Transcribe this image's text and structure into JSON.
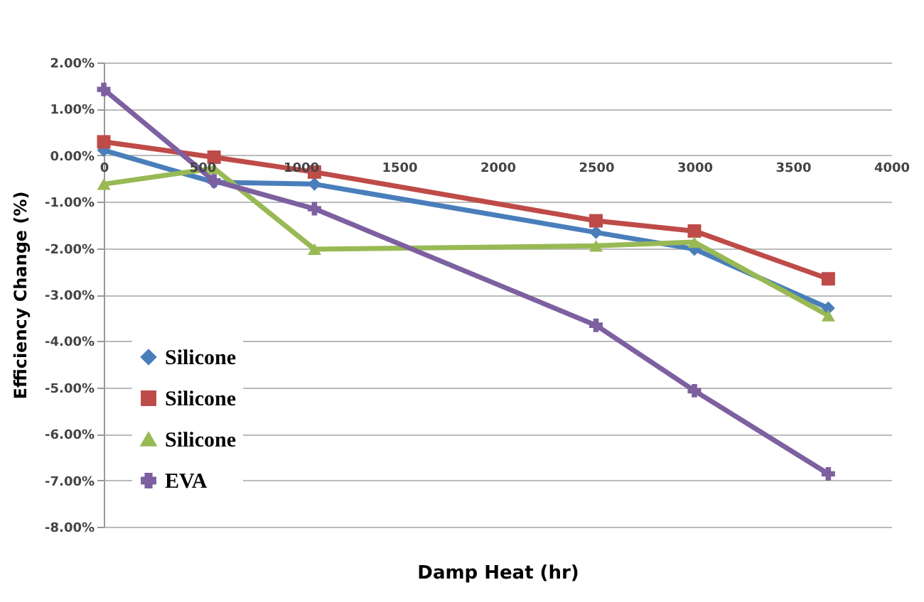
{
  "chart_data": {
    "type": "line",
    "xlabel": "Damp Heat (hr)",
    "ylabel": "Efficiency Change (%)",
    "x": [
      0,
      560,
      1070,
      2500,
      3000,
      3680
    ],
    "series": [
      {
        "name": "Silicone",
        "color": "#4a7ebb",
        "marker": "diamond",
        "values": [
          0.11,
          -0.58,
          -0.62,
          -1.66,
          -2.02,
          -3.29
        ]
      },
      {
        "name": "Silicone",
        "color": "#be4b48",
        "marker": "square",
        "values": [
          0.29,
          -0.04,
          -0.36,
          -1.41,
          -1.63,
          -2.66
        ]
      },
      {
        "name": "Silicone",
        "color": "#98b954",
        "marker": "triangle",
        "values": [
          -0.62,
          -0.28,
          -2.02,
          -1.95,
          -1.87,
          -3.45
        ]
      },
      {
        "name": "EVA",
        "color": "#7d60a0",
        "marker": "cross",
        "values": [
          1.42,
          -0.55,
          -1.15,
          -3.66,
          -5.07,
          -6.86
        ]
      }
    ],
    "xlim": [
      0,
      4000
    ],
    "xticks": [
      0,
      500,
      1000,
      1500,
      2000,
      2500,
      3000,
      3500,
      4000
    ],
    "ylim": [
      -8,
      2
    ],
    "yticks": [
      {
        "value": -8,
        "label": "-8.00%"
      },
      {
        "value": -7,
        "label": "-7.00%"
      },
      {
        "value": -6,
        "label": "-6.00%"
      },
      {
        "value": -5,
        "label": "-5.00%"
      },
      {
        "value": -4,
        "label": "-4.00%"
      },
      {
        "value": -3,
        "label": "-3.00%"
      },
      {
        "value": -2,
        "label": "-2.00%"
      },
      {
        "value": -1,
        "label": "-1.00%"
      },
      {
        "value": 0,
        "label": "0.00%"
      },
      {
        "value": 1,
        "label": "1.00%"
      },
      {
        "value": 2,
        "label": "2.00%"
      }
    ],
    "grid": "y",
    "legend": "bottom left",
    "line_style": "solid"
  }
}
